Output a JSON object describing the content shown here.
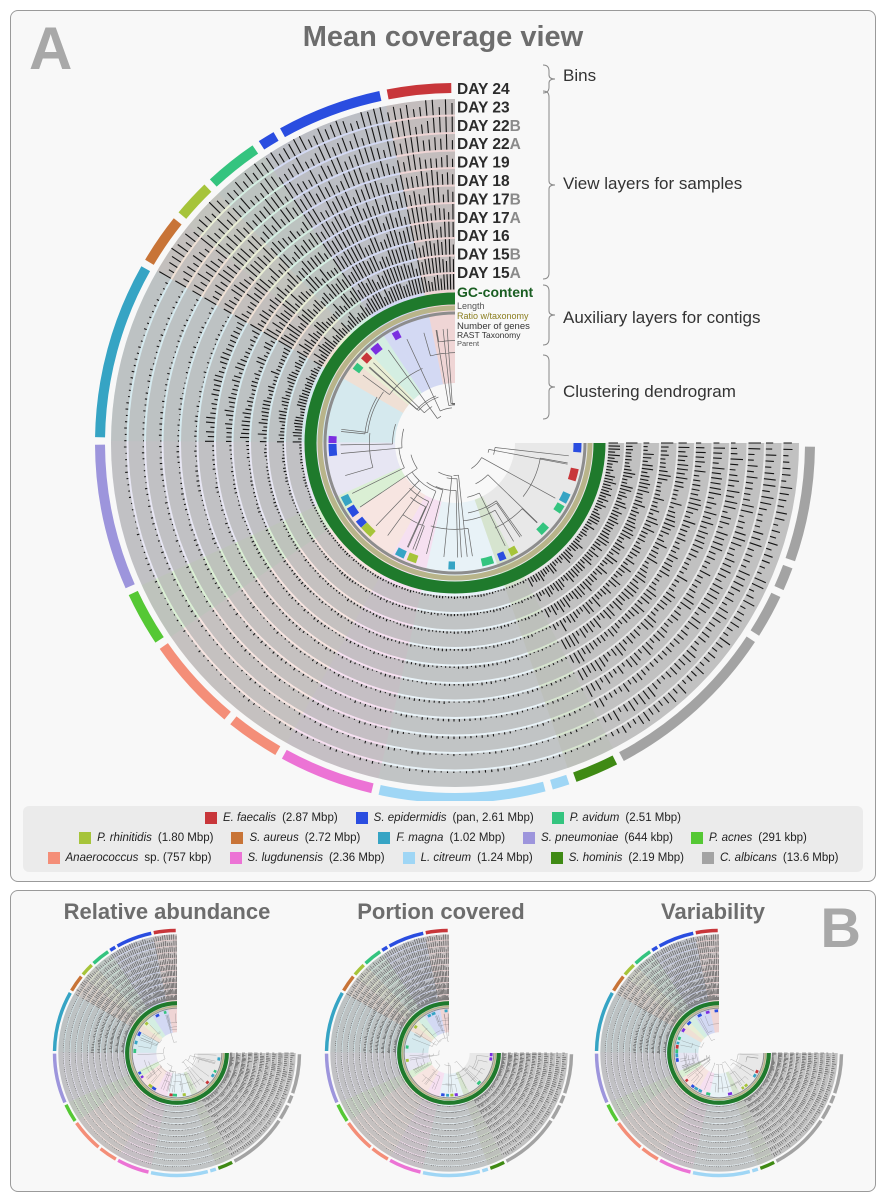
{
  "panel_a": {
    "letter": "A",
    "title": "Mean coverage view",
    "sample_layers": [
      {
        "day": "DAY 24",
        "suffix": ""
      },
      {
        "day": "DAY 23",
        "suffix": ""
      },
      {
        "day": "DAY 22",
        "suffix": "B"
      },
      {
        "day": "DAY 22",
        "suffix": "A"
      },
      {
        "day": "DAY 19",
        "suffix": ""
      },
      {
        "day": "DAY 18",
        "suffix": ""
      },
      {
        "day": "DAY 17",
        "suffix": "B"
      },
      {
        "day": "DAY 17",
        "suffix": "A"
      },
      {
        "day": "DAY 16",
        "suffix": ""
      },
      {
        "day": "DAY 15",
        "suffix": "B"
      },
      {
        "day": "DAY 15",
        "suffix": "A"
      }
    ],
    "auxiliary_layers": [
      "GC-content",
      "Length",
      "Ratio w/taxonomy",
      "Number of genes",
      "RAST Taxonomy",
      "Parent"
    ],
    "annotations": {
      "bins": "Bins",
      "view_layers": "View layers for samples",
      "auxiliary": "Auxiliary layers for contigs",
      "dendrogram": "Clustering dendrogram"
    }
  },
  "legend": [
    {
      "name": "E. faecalis",
      "detail": "(2.87 Mbp)",
      "color": "#c8363a"
    },
    {
      "name": "S. epidermidis",
      "detail": "(pan, 2.61 Mbp)",
      "color": "#2a4de0"
    },
    {
      "name": "P. avidum",
      "detail": "(2.51 Mbp)",
      "color": "#34c47f"
    },
    {
      "name": "P. rhinitidis",
      "detail": "(1.80 Mbp)",
      "color": "#a6c43a"
    },
    {
      "name": "S. aureus",
      "detail": "(2.72 Mbp)",
      "color": "#c87437"
    },
    {
      "name": "F. magna",
      "detail": "(1.02 Mbp)",
      "color": "#36a4c4"
    },
    {
      "name": "S. pneumoniae",
      "detail": "(644 kbp)",
      "color": "#9d95dc"
    },
    {
      "name": "P. acnes",
      "detail": "(291 kbp)",
      "color": "#55c834"
    },
    {
      "name": "Anaerococcus",
      "detail": "sp. (757 kbp)",
      "color": "#f48e78"
    },
    {
      "name": "S. lugdunensis",
      "detail": "(2.36 Mbp)",
      "color": "#ec73d5"
    },
    {
      "name": "L. citreum",
      "detail": "(1.24 Mbp)",
      "color": "#9fd6f5"
    },
    {
      "name": "S. hominis",
      "detail": "(2.19 Mbp)",
      "color": "#3f8a14"
    },
    {
      "name": "C. albicans",
      "detail": "(13.6 Mbp)",
      "color": "#a3a3a3"
    }
  ],
  "bin_arcs": [
    {
      "color": "#c8363a",
      "fraction": 0.035
    },
    {
      "color": "#2a4de0",
      "fraction": 0.055
    },
    {
      "color": "#2a4de0",
      "fraction": 0.012
    },
    {
      "color": "#34c47f",
      "fraction": 0.03
    },
    {
      "color": "#a6c43a",
      "fraction": 0.022
    },
    {
      "color": "#c87437",
      "fraction": 0.028
    },
    {
      "color": "#36a4c4",
      "fraction": 0.09
    },
    {
      "color": "#9d95dc",
      "fraction": 0.075
    },
    {
      "color": "#55c834",
      "fraction": 0.03
    },
    {
      "color": "#f48e78",
      "fraction": 0.05
    },
    {
      "color": "#f48e78",
      "fraction": 0.03
    },
    {
      "color": "#ec73d5",
      "fraction": 0.05
    },
    {
      "color": "#9fd6f5",
      "fraction": 0.085
    },
    {
      "color": "#9fd6f5",
      "fraction": 0.012
    },
    {
      "color": "#3f8a14",
      "fraction": 0.025
    },
    {
      "color": "#a3a3a3",
      "fraction": 0.09
    },
    {
      "color": "#a3a3a3",
      "fraction": 0.025
    },
    {
      "color": "#a3a3a3",
      "fraction": 0.015
    },
    {
      "color": "#a3a3a3",
      "fraction": 0.06
    }
  ],
  "panel_b": {
    "letter": "B",
    "views": [
      "Relative abundance",
      "Portion covered",
      "Variability"
    ]
  }
}
